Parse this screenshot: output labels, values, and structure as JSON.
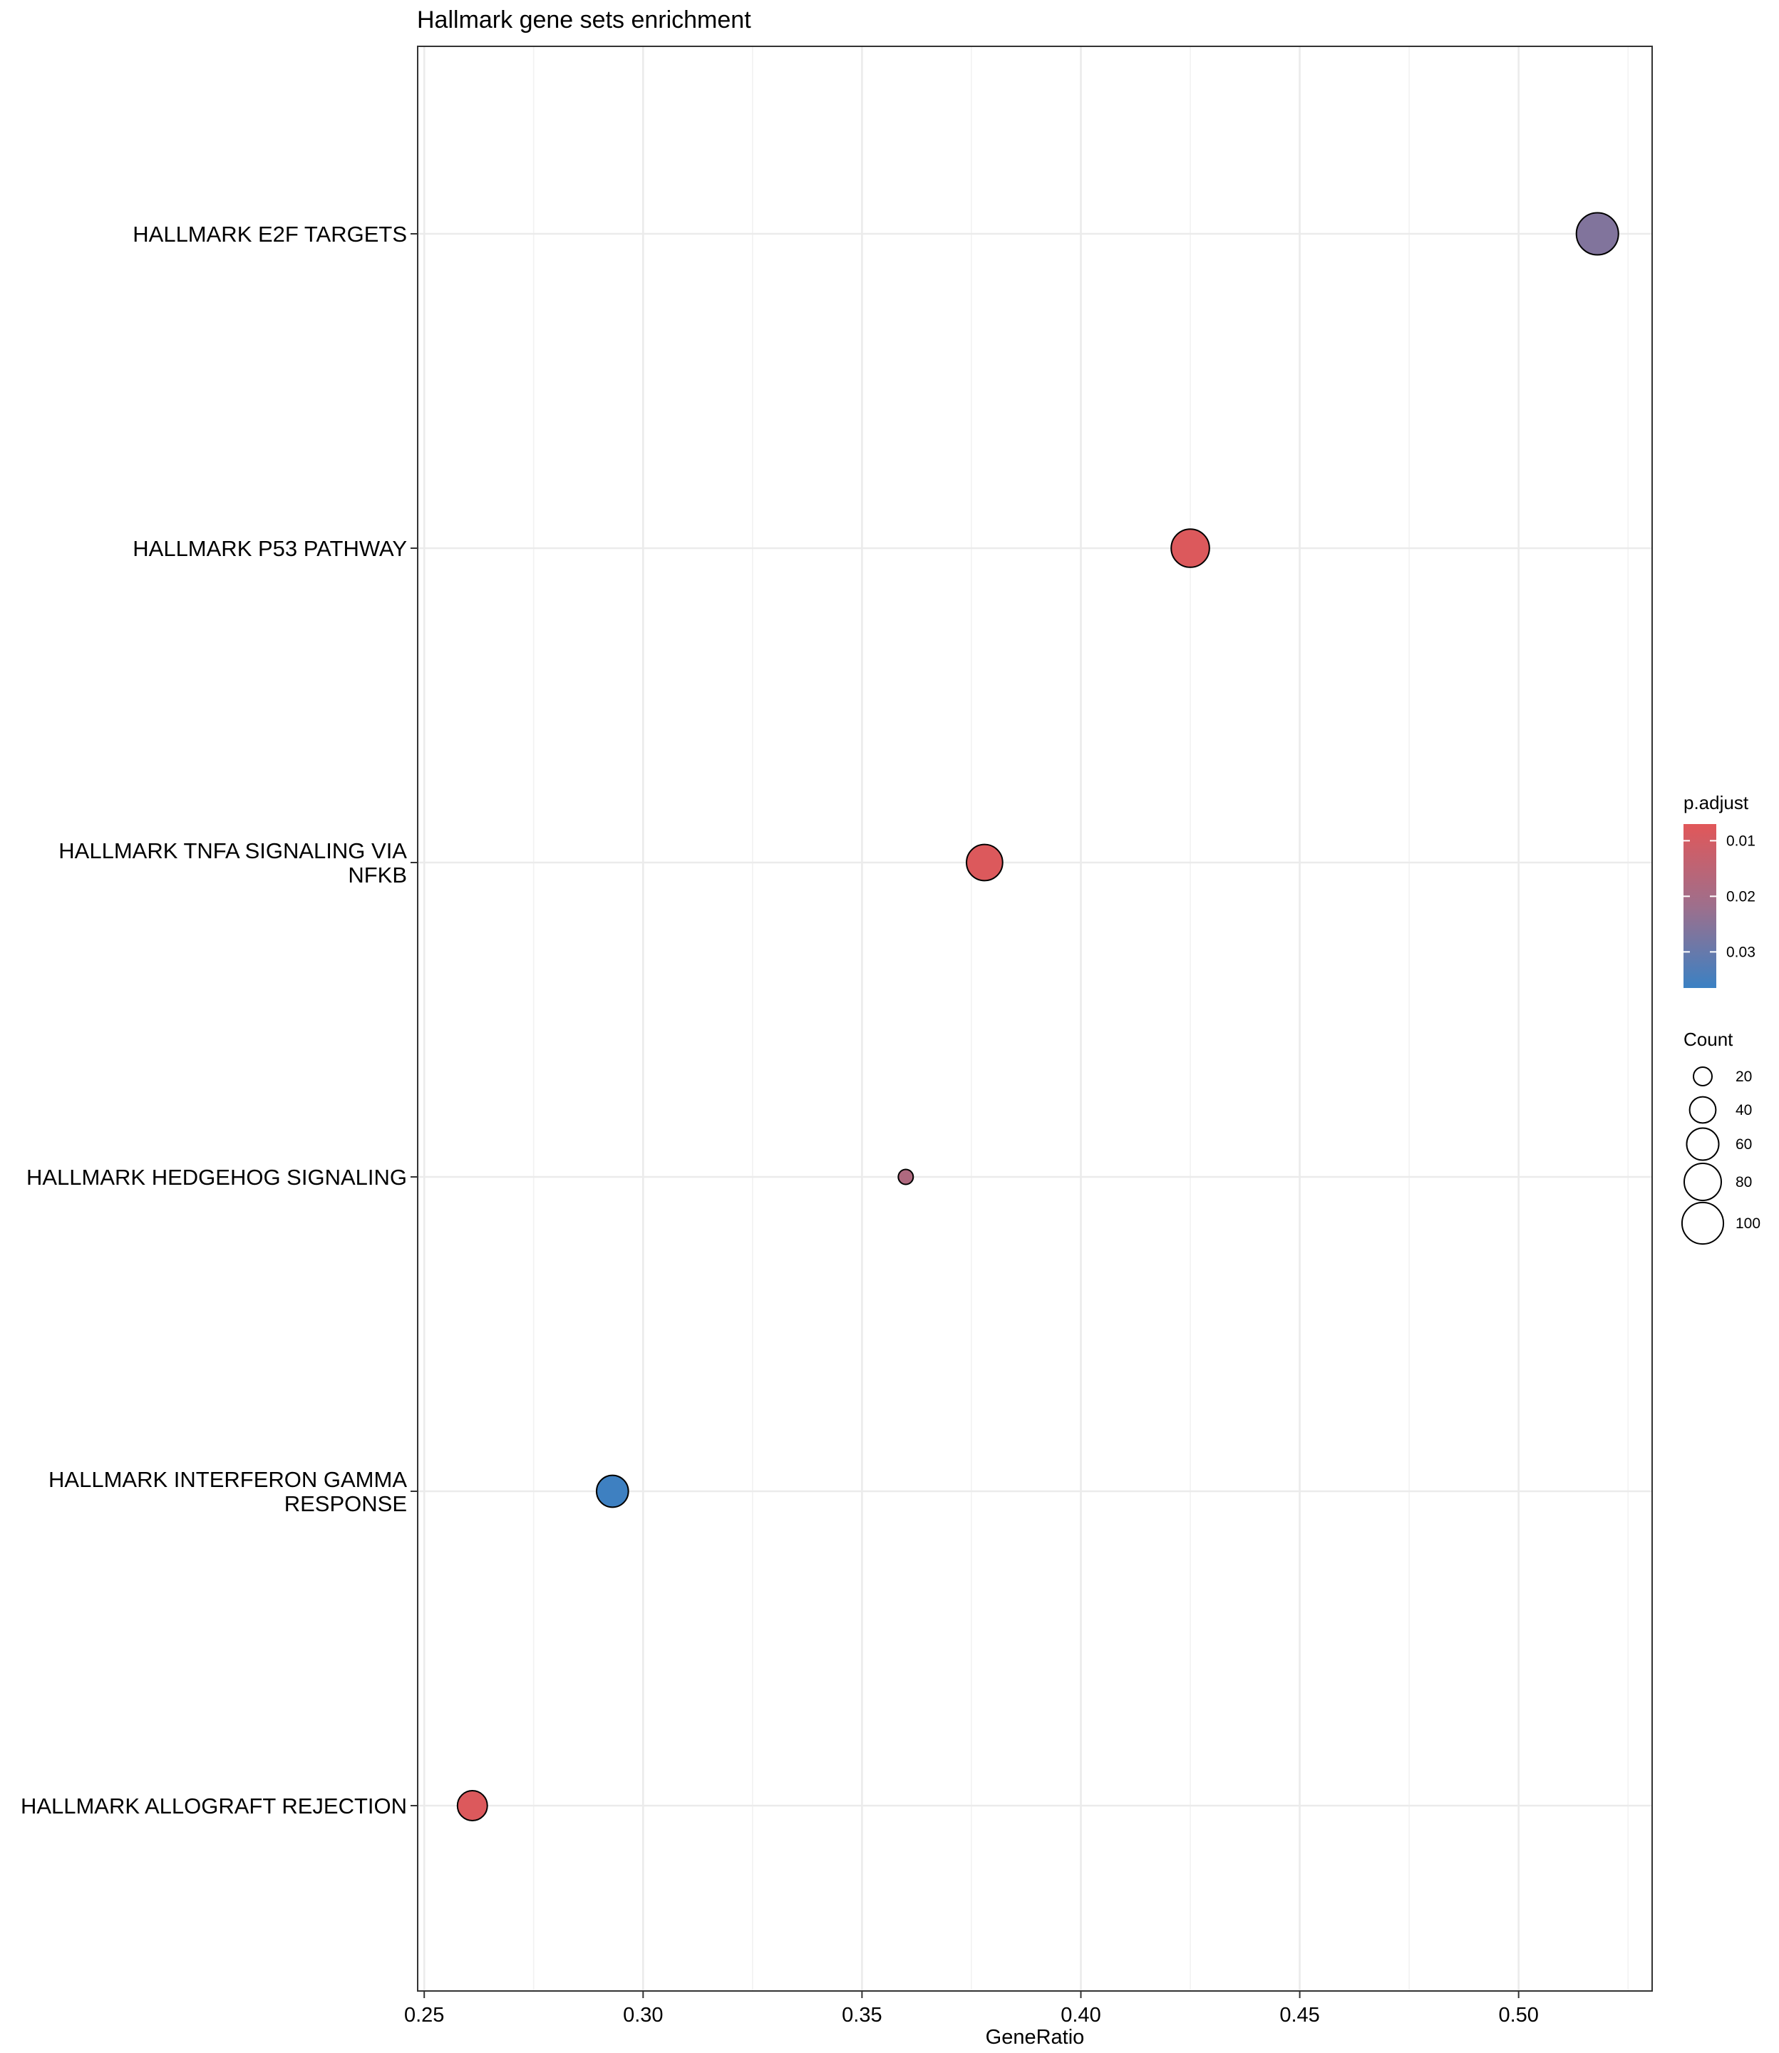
{
  "chart_data": {
    "type": "scatter",
    "title": "Hallmark gene sets enrichment",
    "xlabel": "GeneRatio",
    "ylabel": "",
    "xlim": [
      0.2485,
      0.5305
    ],
    "xticks": [
      0.25,
      0.3,
      0.35,
      0.4,
      0.45,
      0.5
    ],
    "xtick_labels": [
      "0.25",
      "0.30",
      "0.35",
      "0.40",
      "0.45",
      "0.50"
    ],
    "grid": true,
    "categories": [
      "HALLMARK E2F TARGETS",
      "HALLMARK P53 PATHWAY",
      "HALLMARK TNFA SIGNALING VIA NFKB",
      "HALLMARK HEDGEHOG SIGNALING",
      "HALLMARK INTERFERON GAMMA RESPONSE",
      "HALLMARK ALLOGRAFT REJECTION"
    ],
    "category_label_lines": [
      [
        "HALLMARK E2F TARGETS"
      ],
      [
        "HALLMARK P53 PATHWAY"
      ],
      [
        "HALLMARK TNFA SIGNALING VIA",
        "NFKB"
      ],
      [
        "HALLMARK HEDGEHOG SIGNALING"
      ],
      [
        "HALLMARK INTERFERON GAMMA",
        "RESPONSE"
      ],
      [
        "HALLMARK ALLOGRAFT REJECTION"
      ]
    ],
    "points": [
      {
        "category": "HALLMARK E2F TARGETS",
        "gene_ratio": 0.518,
        "count": 103,
        "p_adjust": 0.026
      },
      {
        "category": "HALLMARK P53 PATHWAY",
        "gene_ratio": 0.425,
        "count": 85,
        "p_adjust": 0.008
      },
      {
        "category": "HALLMARK TNFA SIGNALING VIA NFKB",
        "gene_ratio": 0.378,
        "count": 76,
        "p_adjust": 0.008
      },
      {
        "category": "HALLMARK HEDGEHOG SIGNALING",
        "gene_ratio": 0.36,
        "count": 13,
        "p_adjust": 0.018
      },
      {
        "category": "HALLMARK INTERFERON GAMMA RESPONSE",
        "gene_ratio": 0.293,
        "count": 59,
        "p_adjust": 0.036
      },
      {
        "category": "HALLMARK ALLOGRAFT REJECTION",
        "gene_ratio": 0.261,
        "count": 52,
        "p_adjust": 0.008
      }
    ],
    "color_legend": {
      "title": "p.adjust",
      "range": [
        0.007,
        0.0365
      ],
      "ticks": [
        0.01,
        0.02,
        0.03
      ],
      "tick_labels": [
        "0.01",
        "0.02",
        "0.03"
      ],
      "low_color": "#e15759",
      "mid_color": "#9e6f8c",
      "high_color": "#3b81c3"
    },
    "size_legend": {
      "title": "Count",
      "values": [
        20,
        40,
        60,
        80,
        100
      ],
      "labels": [
        "20",
        "40",
        "60",
        "80",
        "100"
      ]
    }
  }
}
